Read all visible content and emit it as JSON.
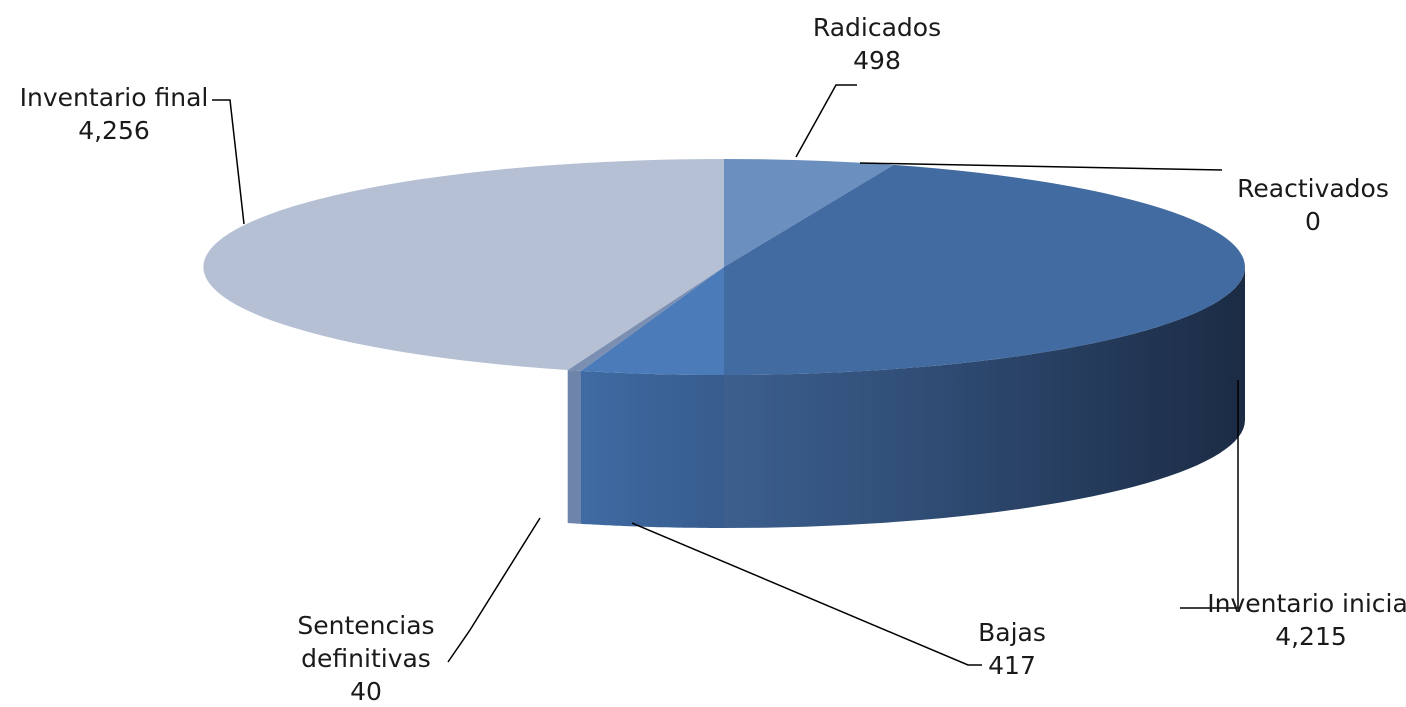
{
  "chart_data": {
    "type": "pie",
    "style": "3d",
    "title": "",
    "slices": [
      {
        "label": "Radicados",
        "value": 498,
        "value_text": "498",
        "color": "#6b8fbe"
      },
      {
        "label": "Reactivados",
        "value": 0,
        "value_text": "0",
        "color": "#5a80b5"
      },
      {
        "label": "Inventario inicial",
        "value": 4215,
        "value_text": "4,215",
        "color": "#416ba1"
      },
      {
        "label": "Bajas",
        "value": 417,
        "value_text": "417",
        "color": "#4b7cb9"
      },
      {
        "label": "Sentencias definitivas",
        "label_lines": [
          "Sentencias",
          "definitivas"
        ],
        "value": 40,
        "value_text": "40",
        "color": "#7b8fb2"
      },
      {
        "label": "Inventario final",
        "value": 4256,
        "value_text": "4,256",
        "color": "#b6c0d4"
      }
    ],
    "legend": "none"
  }
}
